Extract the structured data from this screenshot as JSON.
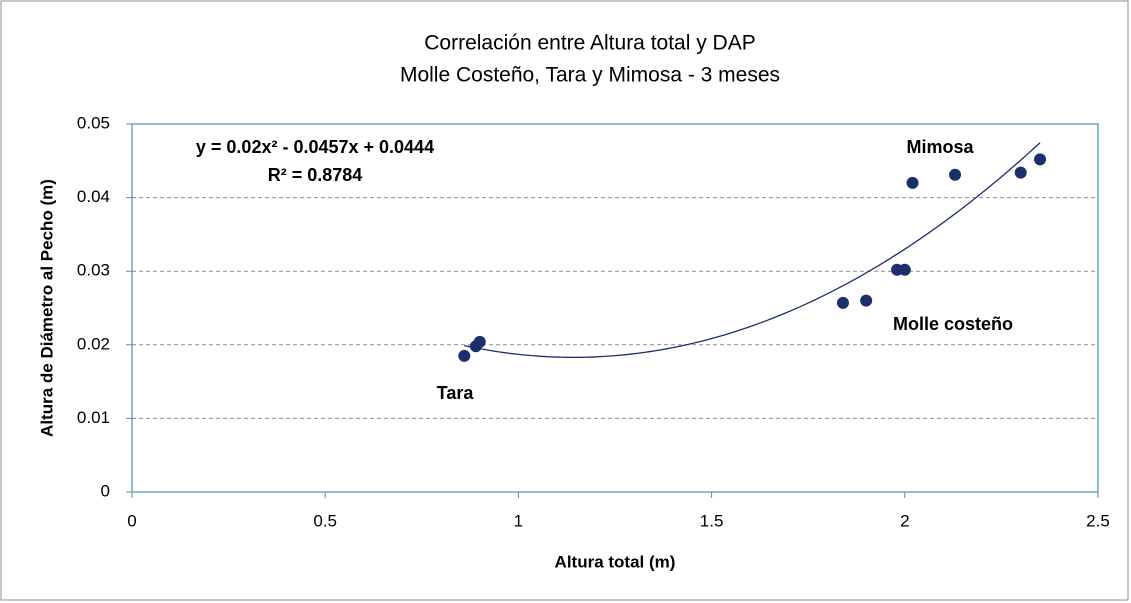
{
  "chart_data": {
    "type": "scatter",
    "title": "Correlación entre Altura total y DAP",
    "subtitle": "Molle Costeño, Tara y  Mimosa - 3 meses",
    "x_label": "Altura total (m)",
    "y_label": "Altura de Diámetro al Pecho (m)",
    "color": "#1b2f6b",
    "x": [
      0.86,
      0.89,
      0.9,
      1.84,
      1.9,
      1.98,
      2.0,
      2.02,
      2.13,
      2.3,
      2.35
    ],
    "values": [
      0.0185,
      0.0198,
      0.0204,
      0.0257,
      0.026,
      0.0302,
      0.0302,
      0.042,
      0.0431,
      0.0434,
      0.0452
    ],
    "xlim": [
      0,
      2.5
    ],
    "ylim": [
      0,
      0.05
    ],
    "xticks": [
      0,
      0.5,
      1,
      1.5,
      2,
      2.5
    ],
    "yticks": [
      0,
      0.01,
      0.02,
      0.03,
      0.04,
      0.05
    ],
    "grid": true,
    "trendline": {
      "coefficients": [
        0.02,
        -0.0457,
        0.0444
      ],
      "xrange": [
        0.86,
        2.35
      ],
      "color": "#1b2f6b"
    },
    "annotations": [
      "y = 0.02x² - 0.0457x + 0.0444",
      "R² = 0.8784",
      "Mimosa",
      "Molle costeño",
      "Tara"
    ]
  }
}
